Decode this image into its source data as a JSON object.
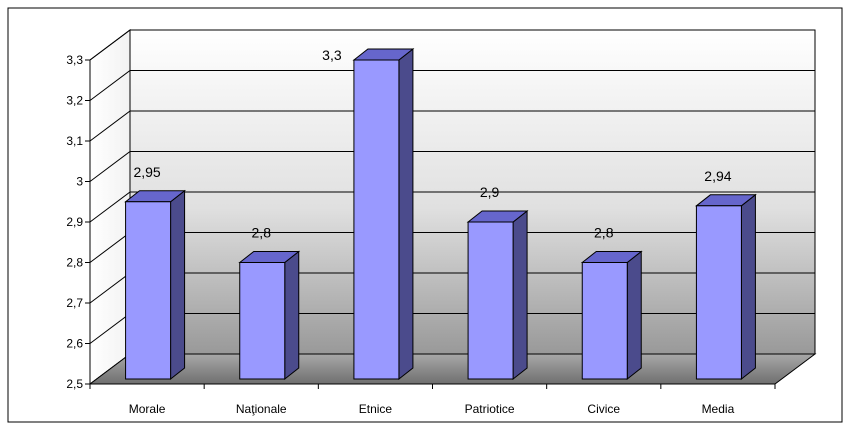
{
  "chart_data": {
    "type": "bar",
    "style": "3d-column",
    "categories": [
      "Morale",
      "Naţionale",
      "Etnice",
      "Patriotice",
      "Civice",
      "Media"
    ],
    "values": [
      2.95,
      2.8,
      3.3,
      2.9,
      2.8,
      2.94
    ],
    "data_labels": [
      "2,95",
      "2,8",
      "3,3",
      "2,9",
      "2,8",
      "2,94"
    ],
    "ylim": [
      2.5,
      3.3
    ],
    "yticks": [
      2.5,
      2.6,
      2.7,
      2.8,
      2.9,
      3.0,
      3.1,
      3.2,
      3.3
    ],
    "ytick_labels": [
      "2,5",
      "2,6",
      "2,7",
      "2,8",
      "2,9",
      "3",
      "3,1",
      "3,2",
      "3,3"
    ],
    "title": "",
    "xlabel": "",
    "ylabel": "",
    "grid": true,
    "legend": "none",
    "colors": {
      "bar_front": "#9999ff",
      "bar_top": "#6666cc",
      "bar_side": "#4b4b8c",
      "bar_outline": "#000000",
      "wall_top": "#ffffff",
      "wall_bottom": "#9a9a9a",
      "floor": "#8c8c8c"
    }
  }
}
